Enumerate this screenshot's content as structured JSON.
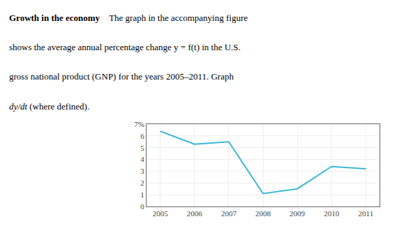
{
  "chart_data": {
    "type": "line",
    "annotations": [
      "Growth in the economy",
      "    The graph in the accompanying figure",
      "shows the average annual percentage change y = f(t) in the U.S.",
      "gross national product (GNP) for the years 2005–2011. Graph",
      "dy/dt",
      " (where defined)."
    ],
    "x": [
      2005,
      2006,
      2007,
      2008,
      2009,
      2010,
      2011
    ],
    "values": [
      6.4,
      5.3,
      5.5,
      1.1,
      1.5,
      3.4,
      3.2
    ],
    "color": "#3bb8d4",
    "xlim": [
      2004.6,
      2011.4
    ],
    "xticks": [
      2005,
      2006,
      2007,
      2008,
      2009,
      2010,
      2011
    ],
    "ylim": [
      0,
      7
    ],
    "yticks": [
      0,
      1,
      2,
      3,
      4,
      5,
      6,
      {
        "value": 7,
        "label": "7%"
      }
    ],
    "grid": true
  }
}
